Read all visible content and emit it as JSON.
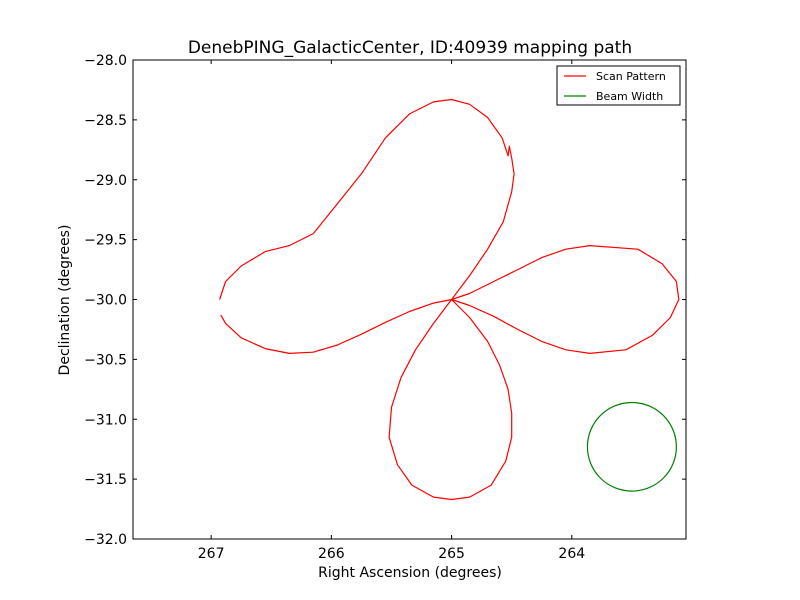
{
  "chart_data": {
    "type": "line",
    "title": "DenebPING_GalacticCenter, ID:40939 mapping path",
    "xlabel": "Right Ascension (degrees)",
    "ylabel": "Declination (degrees)",
    "xlim": [
      267.65,
      263.05
    ],
    "ylim": [
      -32.0,
      -28.0
    ],
    "x_ticks": [
      267,
      266,
      265,
      264
    ],
    "x_tick_labels": [
      "267",
      "266",
      "265",
      "264"
    ],
    "y_ticks": [
      -28.0,
      -28.5,
      -29.0,
      -29.5,
      -30.0,
      -30.5,
      -31.0,
      -31.5,
      -32.0
    ],
    "y_tick_labels": [
      "−28.0",
      "−28.5",
      "−29.0",
      "−29.5",
      "−30.0",
      "−30.5",
      "−31.0",
      "−31.5",
      "−32.0"
    ],
    "grid": false,
    "legend_position": "top-right",
    "series": [
      {
        "name": "Scan Pattern",
        "color": "#ff0000",
        "x": [
          266.92,
          266.88,
          266.75,
          266.55,
          266.35,
          266.15,
          265.95,
          265.75,
          265.55,
          265.35,
          265.15,
          265.0,
          264.85,
          264.65,
          264.45,
          264.25,
          264.05,
          263.85,
          263.55,
          263.33,
          263.18,
          263.11,
          263.13,
          263.25,
          263.45,
          263.85,
          264.05,
          264.25,
          264.45,
          264.65,
          264.85,
          265.0,
          264.85,
          264.7,
          264.6,
          264.53,
          264.5,
          264.5,
          264.55,
          264.67,
          264.85,
          265.0,
          265.15,
          265.33,
          265.45,
          265.52,
          265.5,
          265.42,
          265.3,
          265.15,
          265.0,
          264.85,
          264.7,
          264.57,
          264.5,
          264.48,
          264.5,
          264.52,
          264.53,
          264.58,
          264.7,
          264.85,
          265.0,
          265.15,
          265.35,
          265.55,
          265.75,
          265.95,
          266.15,
          266.35,
          266.55,
          266.75,
          266.88,
          266.93
        ],
        "y": [
          -30.13,
          -30.2,
          -30.32,
          -30.41,
          -30.45,
          -30.44,
          -30.38,
          -30.29,
          -30.19,
          -30.1,
          -30.03,
          -30.0,
          -30.05,
          -30.14,
          -30.25,
          -30.35,
          -30.42,
          -30.45,
          -30.42,
          -30.3,
          -30.15,
          -30.0,
          -29.85,
          -29.7,
          -29.58,
          -29.55,
          -29.58,
          -29.65,
          -29.75,
          -29.85,
          -29.95,
          -30.0,
          -30.15,
          -30.35,
          -30.55,
          -30.75,
          -30.95,
          -31.15,
          -31.35,
          -31.55,
          -31.65,
          -31.67,
          -31.65,
          -31.55,
          -31.38,
          -31.15,
          -30.9,
          -30.65,
          -30.42,
          -30.2,
          -30.0,
          -29.8,
          -29.58,
          -29.35,
          -29.1,
          -28.95,
          -28.82,
          -28.72,
          -28.8,
          -28.65,
          -28.48,
          -28.37,
          -28.33,
          -28.35,
          -28.45,
          -28.65,
          -28.95,
          -29.2,
          -29.45,
          -29.55,
          -29.6,
          -29.72,
          -29.85,
          -30.0
        ]
      },
      {
        "name": "Beam Width",
        "color": "#008000",
        "shape": "circle",
        "center": [
          263.5,
          -31.23
        ],
        "radius_x": 0.37,
        "radius_y": 0.37
      }
    ]
  }
}
